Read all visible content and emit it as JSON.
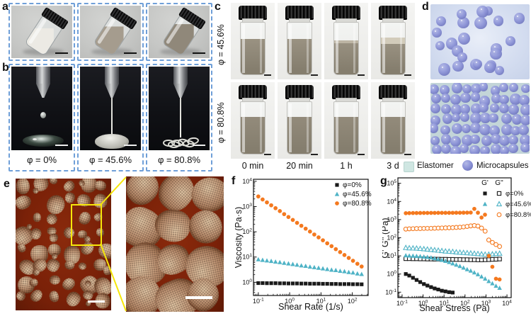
{
  "colors": {
    "dashed_border": "#6f9fd8",
    "accent_orange": "#F4791F",
    "accent_cyan": "#4FB3C6",
    "marker_black": "#1a1a1a",
    "microcapsule_blue": "#8d94d8",
    "elastomer_teal": "#cfe6e2",
    "zoom_box_yellow": "#f6e60a"
  },
  "panels": {
    "a": {
      "label": "a"
    },
    "b": {
      "label": "b",
      "captions": [
        "φ = 0%",
        "φ = 45.6%",
        "φ = 80.8%"
      ]
    },
    "c": {
      "label": "c",
      "row_labels": [
        "φ = 45.6%",
        "φ = 80.8%"
      ],
      "time_labels": [
        "0 min",
        "20 min",
        "1 h",
        "3 d"
      ]
    },
    "d": {
      "label": "d",
      "legend": [
        {
          "name": "Elastomer"
        },
        {
          "name": "Microcapsules"
        }
      ]
    },
    "e": {
      "label": "e"
    },
    "f": {
      "label": "f"
    },
    "g": {
      "label": "g"
    }
  },
  "chart_data": [
    {
      "id": "f",
      "type": "scatter",
      "xscale": "log",
      "yscale": "log",
      "xlabel": "Shear Rate (1/s)",
      "ylabel": "Viscosity (Pa·s)",
      "xlim": [
        0.07,
        320
      ],
      "ylim": [
        0.3,
        12000
      ],
      "xticks": [
        0.1,
        1,
        10,
        100
      ],
      "yticks": [
        1,
        10,
        100,
        1000,
        10000
      ],
      "grid": false,
      "legend_position": "top-right",
      "series": [
        {
          "name": "φ=0%",
          "marker": "square",
          "variant": "filled",
          "color": "#1a1a1a",
          "x": [
            0.1,
            0.137,
            0.188,
            0.258,
            0.354,
            0.486,
            0.667,
            0.915,
            1.26,
            1.72,
            2.36,
            3.24,
            4.45,
            6.11,
            8.38,
            11.5,
            15.8,
            21.7,
            29.7,
            40.8,
            56.0,
            76.8,
            105,
            145,
            198
          ],
          "y": [
            0.93,
            0.93,
            0.92,
            0.92,
            0.92,
            0.91,
            0.91,
            0.9,
            0.9,
            0.9,
            0.89,
            0.89,
            0.88,
            0.88,
            0.88,
            0.87,
            0.87,
            0.86,
            0.86,
            0.85,
            0.85,
            0.85,
            0.84,
            0.84,
            0.83
          ]
        },
        {
          "name": "φ=45.6%",
          "marker": "triangle",
          "variant": "filled",
          "color": "#4FB3C6",
          "x": [
            0.1,
            0.137,
            0.188,
            0.258,
            0.354,
            0.486,
            0.667,
            0.915,
            1.26,
            1.72,
            2.36,
            3.24,
            4.45,
            6.11,
            8.38,
            11.5,
            15.8,
            21.7,
            29.7,
            40.8,
            56.0,
            76.8,
            105,
            145,
            198
          ],
          "y": [
            8.0,
            7.6,
            7.2,
            6.9,
            6.5,
            6.2,
            5.8,
            5.5,
            5.2,
            4.9,
            4.6,
            4.4,
            4.1,
            3.9,
            3.7,
            3.5,
            3.3,
            3.1,
            3.0,
            2.8,
            2.7,
            2.5,
            2.4,
            2.2,
            2.1
          ]
        },
        {
          "name": "φ=80.8%",
          "marker": "circle",
          "variant": "filled",
          "color": "#F4791F",
          "x": [
            0.1,
            0.137,
            0.188,
            0.258,
            0.354,
            0.486,
            0.667,
            0.915,
            1.26,
            1.72,
            2.36,
            3.24,
            4.45,
            6.11,
            8.38,
            11.5,
            15.8,
            21.7,
            29.7,
            40.8,
            56.0,
            76.8,
            105,
            145,
            198
          ],
          "y": [
            2500,
            1900,
            1460,
            1120,
            860,
            660,
            500,
            385,
            295,
            226,
            173,
            133,
            102,
            78,
            60,
            46,
            35,
            27,
            20.5,
            15.7,
            12.0,
            9.2,
            7.1,
            5.4,
            4.2
          ]
        }
      ]
    },
    {
      "id": "g",
      "type": "scatter",
      "xscale": "log",
      "yscale": "log",
      "xlabel": "Shear Stress (Pa)",
      "ylabel": "G' G'' (Pa)",
      "xlim": [
        0.063,
        15850
      ],
      "ylim": [
        0.05,
        200000
      ],
      "xticks": [
        0.1,
        1,
        10,
        100,
        1000,
        10000
      ],
      "yticks": [
        0.1,
        1,
        10,
        100,
        1000,
        10000,
        100000
      ],
      "grid": false,
      "legend_position": "top-right",
      "legend_group": {
        "header": [
          "G'",
          "G''"
        ],
        "rows": [
          "φ=0%",
          "φ=45.6%",
          "φ=80.8%"
        ]
      },
      "series": [
        {
          "name": "G' φ=0%",
          "group": "G'",
          "marker": "square",
          "variant": "filled",
          "color": "#1a1a1a",
          "x": [
            0.15,
            0.22,
            0.33,
            0.49,
            0.73,
            1.09,
            1.61,
            2.4,
            3.56,
            5.29,
            7.86,
            11.7,
            17.4,
            25.8
          ],
          "y": [
            1.0,
            0.82,
            0.62,
            0.47,
            0.36,
            0.28,
            0.23,
            0.19,
            0.16,
            0.14,
            0.12,
            0.11,
            0.1,
            0.095
          ]
        },
        {
          "name": "G'' φ=0%",
          "group": "G''",
          "marker": "square",
          "variant": "open",
          "color": "#1a1a1a",
          "x": [
            0.15,
            0.22,
            0.33,
            0.49,
            0.73,
            1.09,
            1.61,
            2.4,
            3.56,
            5.29,
            7.86,
            11.7,
            17.4,
            25.8,
            38.3,
            56.9,
            84.6,
            126,
            187,
            277,
            412,
            612,
            910,
            1352,
            2009,
            2986,
            4437
          ],
          "y": [
            7.0,
            7.0,
            6.9,
            6.9,
            6.8,
            6.8,
            6.7,
            6.7,
            6.6,
            6.6,
            6.5,
            6.5,
            6.4,
            6.4,
            6.3,
            6.3,
            6.2,
            6.2,
            6.1,
            6.1,
            6.0,
            6.0,
            6.1,
            6.2,
            6.4,
            6.5,
            6.7
          ]
        },
        {
          "name": "G' φ=45.6%",
          "group": "G'",
          "marker": "triangle",
          "variant": "filled",
          "color": "#4FB3C6",
          "x": [
            0.15,
            0.22,
            0.33,
            0.49,
            0.73,
            1.09,
            1.61,
            2.4,
            3.56,
            5.29,
            7.86,
            11.7,
            17.4,
            25.8,
            38.3,
            56.9,
            84.6,
            126,
            187,
            277,
            412,
            612,
            910,
            1352,
            2009,
            2986,
            4437
          ],
          "y": [
            10.5,
            10.2,
            10.0,
            9.7,
            9.4,
            9.0,
            8.6,
            8.0,
            7.3,
            6.6,
            5.9,
            5.2,
            4.5,
            3.8,
            3.2,
            2.7,
            2.2,
            1.8,
            1.5,
            1.2,
            0.95,
            0.72,
            0.55,
            0.4,
            0.3,
            0.22,
            0.17
          ]
        },
        {
          "name": "G'' φ=45.6%",
          "group": "G''",
          "marker": "triangle",
          "variant": "open",
          "color": "#4FB3C6",
          "x": [
            0.15,
            0.22,
            0.33,
            0.49,
            0.73,
            1.09,
            1.61,
            2.4,
            3.56,
            5.29,
            7.86,
            11.7,
            17.4,
            25.8,
            38.3,
            56.9,
            84.6,
            126,
            187,
            277,
            412,
            612,
            910,
            1352,
            2009,
            2986,
            4437
          ],
          "y": [
            28,
            27,
            26.5,
            26,
            25,
            24,
            23,
            22,
            21,
            20,
            19,
            18,
            17.5,
            17,
            16,
            15.5,
            15,
            14.5,
            14,
            13.5,
            13,
            12.5,
            12,
            12,
            12.5,
            13,
            13.5
          ]
        },
        {
          "name": "G' φ=80.8%",
          "group": "G'",
          "marker": "circle",
          "variant": "filled",
          "color": "#F4791F",
          "x": [
            0.15,
            0.22,
            0.33,
            0.49,
            0.73,
            1.09,
            1.61,
            2.4,
            3.56,
            5.29,
            7.86,
            11.7,
            17.4,
            25.8,
            38.3,
            56.9,
            84.6,
            126,
            187,
            277,
            412,
            612,
            910,
            1352,
            2009,
            2986,
            4437
          ],
          "y": [
            2250,
            2280,
            2300,
            2310,
            2320,
            2330,
            2330,
            2340,
            2340,
            2350,
            2350,
            2360,
            2360,
            2370,
            2380,
            2390,
            2400,
            2420,
            2450,
            3900,
            2400,
            1300,
            240,
            10,
            2.5,
            0.55,
            0.5
          ]
        },
        {
          "name": "G'' φ=80.8%",
          "group": "G''",
          "marker": "circle",
          "variant": "open",
          "color": "#F4791F",
          "x": [
            0.15,
            0.22,
            0.33,
            0.49,
            0.73,
            1.09,
            1.61,
            2.4,
            3.56,
            5.29,
            7.86,
            11.7,
            17.4,
            25.8,
            38.3,
            56.9,
            84.6,
            126,
            187,
            277,
            412,
            612,
            910,
            1352,
            2009,
            2986,
            4437
          ],
          "y": [
            300,
            310,
            315,
            320,
            320,
            325,
            330,
            330,
            335,
            340,
            345,
            350,
            355,
            360,
            370,
            380,
            395,
            420,
            450,
            470,
            440,
            340,
            230,
            75,
            55,
            42,
            33
          ]
        }
      ]
    }
  ]
}
